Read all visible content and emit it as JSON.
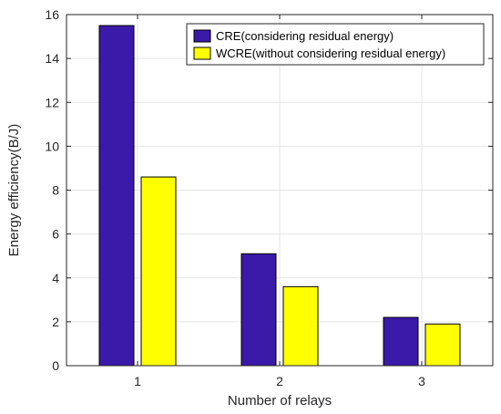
{
  "chart_data": {
    "type": "bar",
    "categories": [
      "1",
      "2",
      "3"
    ],
    "series": [
      {
        "name": "CRE(considering residual energy)",
        "values": [
          15.5,
          5.1,
          2.2
        ],
        "color": "#3a1aa8"
      },
      {
        "name": "WCRE(without considering residual energy)",
        "values": [
          8.6,
          3.6,
          1.9
        ],
        "color": "#ffff00"
      }
    ],
    "title": "",
    "xlabel": "Number of relays",
    "ylabel": "Energy efficiency(B/J)",
    "ylim": [
      0,
      16
    ],
    "yticks": [
      0,
      2,
      4,
      6,
      8,
      10,
      12,
      14,
      16
    ],
    "grid": true,
    "legend_position": "top-right"
  }
}
